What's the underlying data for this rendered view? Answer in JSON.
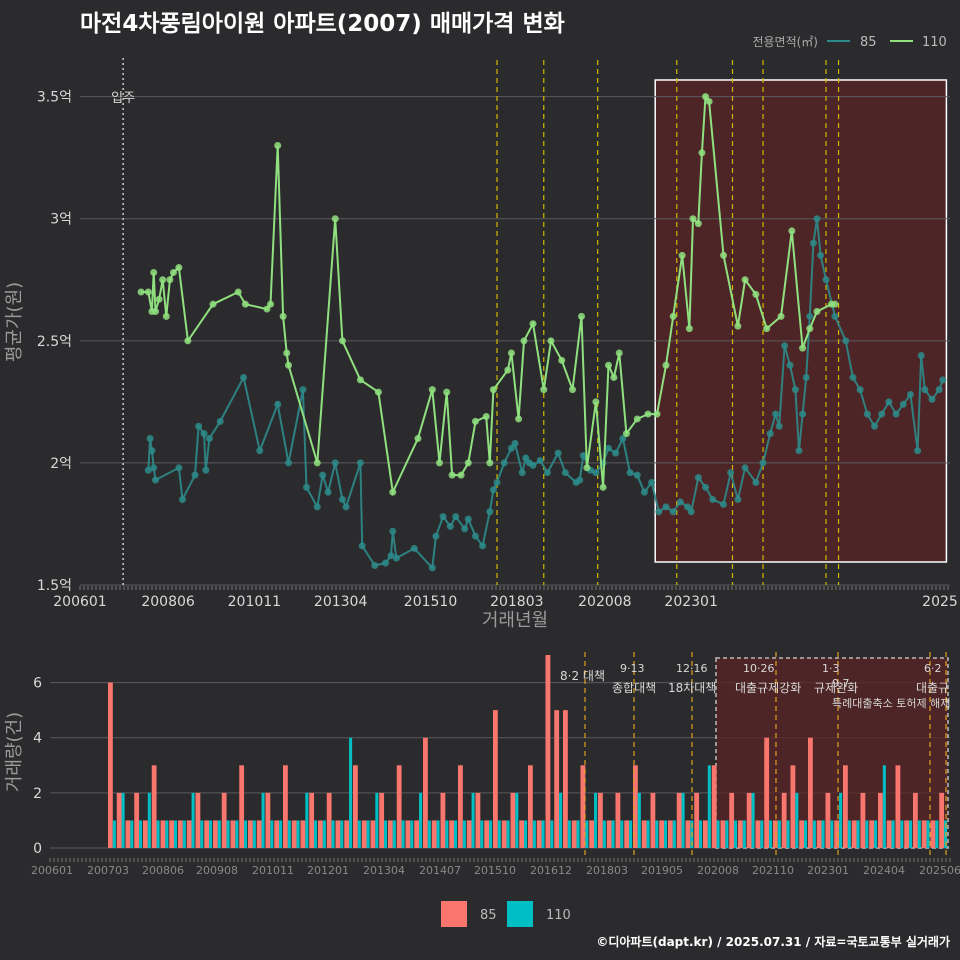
{
  "title": "마전4차풍림아이원 아파트(2007) 매매가격 변화",
  "footer": "©디아파트(dapt.kr) / 2025.07.31 / 자료=국토교통부 실거래가",
  "colors": {
    "background": "#2b2b2d",
    "s85_line": "#2e8b8b",
    "s110_line": "#90e080",
    "vol85": "#f8766d",
    "vol110": "#00bfc4",
    "highlight": "#5a2424",
    "policy": "#d4b800"
  },
  "chart_data": [
    {
      "type": "line",
      "xlabel": "거래년월",
      "ylabel": "평균가(원)",
      "x_ticks": [
        "200601",
        "200806",
        "201011",
        "201304",
        "201510",
        "201803",
        "202008",
        "202301",
        "2025"
      ],
      "y_ticks": [
        "1.5억",
        "2억",
        "2.5억",
        "3억",
        "3.5억"
      ],
      "ylim": [
        1.5,
        3.65
      ],
      "legend_title": "전용면적(㎡)",
      "legend": [
        "85",
        "110"
      ],
      "annotations": [
        {
          "text": "입주",
          "x": 2007.2
        }
      ],
      "series": [
        {
          "name": "85",
          "points": [
            [
              2007.9,
              1.97
            ],
            [
              2007.95,
              2.1
            ],
            [
              2008.0,
              2.05
            ],
            [
              2008.05,
              1.98
            ],
            [
              2008.1,
              1.93
            ],
            [
              2008.75,
              1.98
            ],
            [
              2008.85,
              1.85
            ],
            [
              2009.2,
              1.95
            ],
            [
              2009.3,
              2.15
            ],
            [
              2009.45,
              2.12
            ],
            [
              2009.5,
              1.97
            ],
            [
              2009.6,
              2.1
            ],
            [
              2009.9,
              2.17
            ],
            [
              2010.55,
              2.35
            ],
            [
              2011.0,
              2.05
            ],
            [
              2011.5,
              2.24
            ],
            [
              2011.8,
              2.0
            ],
            [
              2012.2,
              2.3
            ],
            [
              2012.3,
              1.9
            ],
            [
              2012.6,
              1.82
            ],
            [
              2012.75,
              1.95
            ],
            [
              2012.9,
              1.88
            ],
            [
              2013.1,
              2.0
            ],
            [
              2013.3,
              1.85
            ],
            [
              2013.4,
              1.82
            ],
            [
              2013.8,
              2.0
            ],
            [
              2013.85,
              1.66
            ],
            [
              2014.2,
              1.58
            ],
            [
              2014.5,
              1.59
            ],
            [
              2014.65,
              1.62
            ],
            [
              2014.7,
              1.72
            ],
            [
              2014.8,
              1.61
            ],
            [
              2015.3,
              1.65
            ],
            [
              2015.8,
              1.57
            ],
            [
              2015.9,
              1.7
            ],
            [
              2016.1,
              1.78
            ],
            [
              2016.3,
              1.74
            ],
            [
              2016.45,
              1.78
            ],
            [
              2016.7,
              1.73
            ],
            [
              2016.8,
              1.77
            ],
            [
              2017.0,
              1.7
            ],
            [
              2017.2,
              1.66
            ],
            [
              2017.4,
              1.8
            ],
            [
              2017.5,
              1.89
            ],
            [
              2017.6,
              1.92
            ],
            [
              2017.8,
              2.0
            ],
            [
              2018.0,
              2.06
            ],
            [
              2018.1,
              2.08
            ],
            [
              2018.3,
              1.96
            ],
            [
              2018.4,
              2.02
            ],
            [
              2018.5,
              2.0
            ],
            [
              2018.6,
              1.99
            ],
            [
              2018.8,
              2.01
            ],
            [
              2019.0,
              1.96
            ],
            [
              2019.3,
              2.04
            ],
            [
              2019.5,
              1.96
            ],
            [
              2019.8,
              1.92
            ],
            [
              2019.9,
              1.93
            ],
            [
              2020.0,
              2.03
            ],
            [
              2020.2,
              1.97
            ],
            [
              2020.35,
              1.96
            ],
            [
              2020.55,
              2.0
            ],
            [
              2020.7,
              2.06
            ],
            [
              2020.9,
              2.04
            ],
            [
              2021.1,
              2.1
            ],
            [
              2021.3,
              1.96
            ],
            [
              2021.5,
              1.95
            ],
            [
              2021.7,
              1.88
            ],
            [
              2021.9,
              1.92
            ],
            [
              2022.1,
              1.8
            ],
            [
              2022.3,
              1.82
            ],
            [
              2022.5,
              1.8
            ],
            [
              2022.7,
              1.84
            ],
            [
              2022.9,
              1.82
            ],
            [
              2023.0,
              1.8
            ],
            [
              2023.2,
              1.94
            ],
            [
              2023.4,
              1.9
            ],
            [
              2023.6,
              1.85
            ],
            [
              2023.9,
              1.83
            ],
            [
              2024.1,
              1.96
            ],
            [
              2024.3,
              1.85
            ],
            [
              2024.5,
              1.98
            ],
            [
              2024.8,
              1.92
            ],
            [
              2025.0,
              2.0
            ],
            [
              2025.2,
              2.12
            ],
            [
              2025.35,
              2.2
            ],
            [
              2025.45,
              2.15
            ],
            [
              2025.6,
              2.48
            ],
            [
              2025.75,
              2.4
            ],
            [
              2025.9,
              2.3
            ],
            [
              2026.0,
              2.05
            ],
            [
              2026.1,
              2.2
            ],
            [
              2026.2,
              2.35
            ],
            [
              2026.3,
              2.6
            ],
            [
              2026.4,
              2.9
            ],
            [
              2026.5,
              3.0
            ],
            [
              2026.6,
              2.85
            ],
            [
              2026.75,
              2.75
            ],
            [
              2027.0,
              2.6
            ],
            [
              2027.3,
              2.5
            ],
            [
              2027.5,
              2.35
            ],
            [
              2027.7,
              2.3
            ],
            [
              2027.9,
              2.2
            ],
            [
              2028.1,
              2.15
            ],
            [
              2028.3,
              2.2
            ],
            [
              2028.5,
              2.25
            ],
            [
              2028.7,
              2.2
            ],
            [
              2028.9,
              2.24
            ],
            [
              2029.1,
              2.28
            ],
            [
              2029.3,
              2.05
            ],
            [
              2029.4,
              2.44
            ],
            [
              2029.5,
              2.3
            ],
            [
              2029.7,
              2.26
            ],
            [
              2029.9,
              2.3
            ],
            [
              2030.0,
              2.34
            ]
          ]
        },
        {
          "name": "110",
          "points": [
            [
              2007.7,
              2.7
            ],
            [
              2007.9,
              2.7
            ],
            [
              2008.0,
              2.62
            ],
            [
              2008.05,
              2.78
            ],
            [
              2008.1,
              2.62
            ],
            [
              2008.2,
              2.67
            ],
            [
              2008.3,
              2.75
            ],
            [
              2008.4,
              2.6
            ],
            [
              2008.5,
              2.75
            ],
            [
              2008.6,
              2.78
            ],
            [
              2008.75,
              2.8
            ],
            [
              2009.0,
              2.5
            ],
            [
              2009.7,
              2.65
            ],
            [
              2010.4,
              2.7
            ],
            [
              2010.6,
              2.65
            ],
            [
              2011.2,
              2.63
            ],
            [
              2011.3,
              2.65
            ],
            [
              2011.5,
              3.3
            ],
            [
              2011.65,
              2.6
            ],
            [
              2011.75,
              2.45
            ],
            [
              2011.8,
              2.4
            ],
            [
              2012.6,
              2.0
            ],
            [
              2013.1,
              3.0
            ],
            [
              2013.3,
              2.5
            ],
            [
              2013.8,
              2.34
            ],
            [
              2014.3,
              2.29
            ],
            [
              2014.7,
              1.88
            ],
            [
              2015.4,
              2.1
            ],
            [
              2015.8,
              2.3
            ],
            [
              2016.0,
              2.0
            ],
            [
              2016.2,
              2.29
            ],
            [
              2016.35,
              1.95
            ],
            [
              2016.6,
              1.95
            ],
            [
              2016.8,
              2.0
            ],
            [
              2017.0,
              2.17
            ],
            [
              2017.3,
              2.19
            ],
            [
              2017.4,
              2.0
            ],
            [
              2017.5,
              2.3
            ],
            [
              2017.9,
              2.38
            ],
            [
              2018.0,
              2.45
            ],
            [
              2018.2,
              2.18
            ],
            [
              2018.35,
              2.5
            ],
            [
              2018.6,
              2.57
            ],
            [
              2018.9,
              2.3
            ],
            [
              2019.1,
              2.5
            ],
            [
              2019.4,
              2.42
            ],
            [
              2019.7,
              2.3
            ],
            [
              2019.95,
              2.6
            ],
            [
              2020.1,
              1.98
            ],
            [
              2020.35,
              2.25
            ],
            [
              2020.55,
              1.9
            ],
            [
              2020.7,
              2.4
            ],
            [
              2020.85,
              2.35
            ],
            [
              2021.0,
              2.45
            ],
            [
              2021.2,
              2.12
            ],
            [
              2021.5,
              2.18
            ],
            [
              2021.8,
              2.2
            ],
            [
              2022.05,
              2.2
            ],
            [
              2022.3,
              2.4
            ],
            [
              2022.5,
              2.6
            ],
            [
              2022.75,
              2.85
            ],
            [
              2022.95,
              2.55
            ],
            [
              2023.05,
              3.0
            ],
            [
              2023.2,
              2.98
            ],
            [
              2023.3,
              3.27
            ],
            [
              2023.4,
              3.5
            ],
            [
              2023.5,
              3.48
            ],
            [
              2023.9,
              2.85
            ],
            [
              2024.3,
              2.56
            ],
            [
              2024.5,
              2.75
            ],
            [
              2024.8,
              2.69
            ],
            [
              2025.1,
              2.55
            ],
            [
              2025.5,
              2.6
            ],
            [
              2025.8,
              2.95
            ],
            [
              2026.1,
              2.47
            ],
            [
              2026.3,
              2.55
            ],
            [
              2026.5,
              2.62
            ],
            [
              2026.9,
              2.65
            ],
            [
              2027.0,
              2.65
            ]
          ]
        }
      ]
    },
    {
      "type": "bar",
      "xlabel": "",
      "ylabel": "거래량(건)",
      "y_ticks": [
        "0",
        "2",
        "4",
        "6"
      ],
      "ylim": [
        0,
        7
      ],
      "x_ticks": [
        "200601",
        "200703",
        "200806",
        "200908",
        "201011",
        "201201",
        "201304",
        "201407",
        "201510",
        "201612",
        "201803",
        "201905",
        "202008",
        "202110",
        "202301",
        "202404",
        "202506"
      ],
      "legend": [
        "85",
        "110"
      ],
      "policy_labels": [
        {
          "date": "8·2",
          "text": "대책"
        },
        {
          "date": "9·13",
          "text": "종합대책"
        },
        {
          "date": "12·16",
          "text": "18차대책"
        },
        {
          "date": "10·26",
          "text": "대출규제강화"
        },
        {
          "date": "1·3",
          "text": "규제완화"
        },
        {
          "date": "9·7",
          "text": "특례대출축소 토허제 해제"
        },
        {
          "date": "6·2",
          "text": "대출규"
        }
      ],
      "series": [
        {
          "name": "85",
          "values": [
            6,
            2,
            1,
            2,
            1,
            3,
            1,
            1,
            1,
            1,
            2,
            1,
            1,
            2,
            1,
            3,
            1,
            1,
            2,
            1,
            3,
            1,
            1,
            2,
            1,
            2,
            1,
            1,
            3,
            1,
            1,
            2,
            1,
            3,
            1,
            1,
            4,
            1,
            2,
            1,
            3,
            1,
            2,
            1,
            5,
            1,
            2,
            1,
            3,
            1,
            7,
            5,
            5,
            1,
            3,
            1,
            2,
            1,
            2,
            1,
            3,
            1,
            2,
            1,
            1,
            2,
            1,
            2,
            1,
            3,
            1,
            2,
            1,
            2,
            1,
            4,
            1,
            2,
            3,
            1,
            4,
            1,
            2,
            1,
            3,
            1,
            2,
            1,
            2,
            1,
            3,
            1,
            2,
            1,
            1,
            2
          ]
        },
        {
          "name": "110",
          "values": [
            1,
            2,
            1,
            1,
            2,
            1,
            1,
            1,
            1,
            2,
            1,
            1,
            1,
            1,
            1,
            1,
            1,
            2,
            1,
            1,
            1,
            1,
            2,
            1,
            1,
            1,
            1,
            4,
            1,
            1,
            2,
            1,
            1,
            1,
            1,
            2,
            1,
            1,
            1,
            1,
            1,
            2,
            1,
            1,
            1,
            1,
            2,
            1,
            1,
            1,
            1,
            2,
            1,
            1,
            1,
            2,
            1,
            1,
            1,
            1,
            2,
            1,
            1,
            1,
            1,
            2,
            1,
            1,
            3,
            1,
            1,
            1,
            1,
            2,
            1,
            1,
            1,
            1,
            2,
            1,
            1,
            1,
            1,
            2,
            1,
            1,
            1,
            1,
            3,
            1,
            1,
            1,
            1,
            1,
            1,
            1
          ]
        }
      ]
    }
  ]
}
